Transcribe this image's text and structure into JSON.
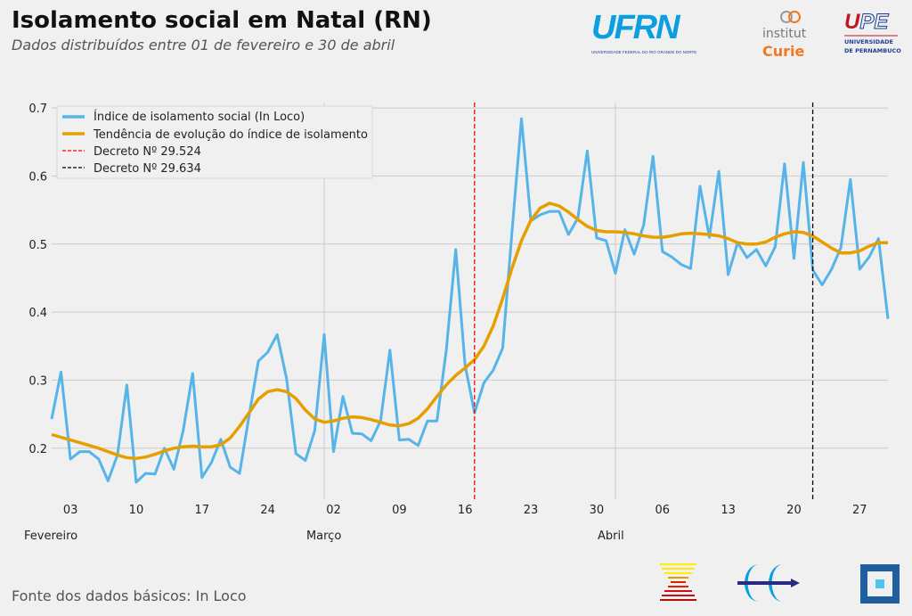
{
  "header": {
    "title": "Isolamento social em Natal (RN)",
    "subtitle": "Dados distribuídos entre 01 de fevereiro e 30 de abril"
  },
  "footer": {
    "source": "Fonte dos dados básicos: In Loco"
  },
  "logos": {
    "ufrn": {
      "text": "UFRN",
      "subtext": "UNIVERSIDADE FEDERAL DO RIO GRANDE DO NORTE"
    },
    "curie": {
      "line1": "institut",
      "line2": "Curie"
    },
    "upe": {
      "text": "UPE",
      "line1": "UNIVERSIDADE",
      "line2": "DE PERNAMBUCO"
    }
  },
  "chart_data": {
    "type": "line",
    "title": "Isolamento social em Natal (RN)",
    "x_start": "2020-02-01",
    "x_end": "2020-04-30",
    "ylim": [
      0.125,
      0.708
    ],
    "grid": true,
    "legend_position": "top-left",
    "y_ticks": [
      "0.2",
      "0.3",
      "0.4",
      "0.5",
      "0.6",
      "0.7"
    ],
    "x_ticks": [
      {
        "date": "2020-02-03",
        "label": "03"
      },
      {
        "date": "2020-02-10",
        "label": "10"
      },
      {
        "date": "2020-02-17",
        "label": "17"
      },
      {
        "date": "2020-02-24",
        "label": "24"
      },
      {
        "date": "2020-03-02",
        "label": "02"
      },
      {
        "date": "2020-03-09",
        "label": "09"
      },
      {
        "date": "2020-03-16",
        "label": "16"
      },
      {
        "date": "2020-03-23",
        "label": "23"
      },
      {
        "date": "2020-03-30",
        "label": "30"
      },
      {
        "date": "2020-04-06",
        "label": "06"
      },
      {
        "date": "2020-04-13",
        "label": "13"
      },
      {
        "date": "2020-04-20",
        "label": "20"
      },
      {
        "date": "2020-04-27",
        "label": "27"
      }
    ],
    "month_labels": [
      {
        "date": "2020-02-01",
        "label": "Fevereiro"
      },
      {
        "date": "2020-03-01",
        "label": "Março"
      },
      {
        "date": "2020-04-01",
        "label": "Abril"
      }
    ],
    "series": [
      {
        "name": "Índice de isolamento social (In Loco)",
        "color": "#56b4e9",
        "values": [
          0.243,
          0.312,
          0.184,
          0.195,
          0.195,
          0.184,
          0.152,
          0.19,
          0.293,
          0.15,
          0.163,
          0.162,
          0.2,
          0.169,
          0.226,
          0.31,
          0.157,
          0.179,
          0.213,
          0.172,
          0.163,
          0.247,
          0.328,
          0.341,
          0.367,
          0.302,
          0.192,
          0.182,
          0.226,
          0.367,
          0.195,
          0.276,
          0.222,
          0.221,
          0.211,
          0.24,
          0.344,
          0.212,
          0.213,
          0.204,
          0.24,
          0.24,
          0.344,
          0.492,
          0.322,
          0.252,
          0.296,
          0.315,
          0.347,
          0.52,
          0.684,
          0.534,
          0.543,
          0.548,
          0.548,
          0.514,
          0.538,
          0.637,
          0.509,
          0.505,
          0.457,
          0.521,
          0.485,
          0.528,
          0.629,
          0.489,
          0.481,
          0.47,
          0.464,
          0.585,
          0.51,
          0.607,
          0.455,
          0.502,
          0.48,
          0.492,
          0.468,
          0.496,
          0.618,
          0.479,
          0.62,
          0.462,
          0.44,
          0.463,
          0.495,
          0.595,
          0.463,
          0.481,
          0.508,
          0.39
        ]
      },
      {
        "name": "Tendência de evolução do índice de isolamento",
        "color": "#e69f00",
        "values": [
          0.22,
          0.216,
          0.212,
          0.208,
          0.204,
          0.2,
          0.195,
          0.19,
          0.186,
          0.185,
          0.187,
          0.191,
          0.196,
          0.2,
          0.202,
          0.203,
          0.202,
          0.202,
          0.205,
          0.215,
          0.232,
          0.252,
          0.272,
          0.283,
          0.286,
          0.283,
          0.273,
          0.256,
          0.243,
          0.238,
          0.24,
          0.244,
          0.246,
          0.245,
          0.242,
          0.238,
          0.234,
          0.233,
          0.236,
          0.244,
          0.258,
          0.276,
          0.293,
          0.307,
          0.318,
          0.33,
          0.35,
          0.38,
          0.42,
          0.465,
          0.505,
          0.535,
          0.553,
          0.56,
          0.556,
          0.547,
          0.536,
          0.526,
          0.52,
          0.518,
          0.518,
          0.517,
          0.515,
          0.512,
          0.51,
          0.51,
          0.512,
          0.515,
          0.516,
          0.515,
          0.514,
          0.512,
          0.508,
          0.502,
          0.5,
          0.5,
          0.503,
          0.51,
          0.515,
          0.518,
          0.517,
          0.512,
          0.503,
          0.494,
          0.487,
          0.487,
          0.49,
          0.497,
          0.502,
          0.502
        ]
      }
    ],
    "vlines": [
      {
        "name": "Decreto Nº 29.524",
        "date": "2020-03-17",
        "color": "#ff0000"
      },
      {
        "name": "Decreto Nº 29.634",
        "date": "2020-04-22",
        "color": "#000000"
      }
    ]
  }
}
